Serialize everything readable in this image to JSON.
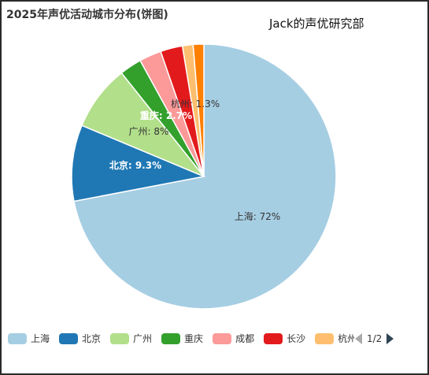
{
  "chart_data": {
    "type": "pie",
    "title": "2025年声优活动城市分布(饼图)",
    "watermark": "Jack的声优研究部",
    "slices": [
      {
        "name": "上海",
        "value": 72,
        "color": "#a6cee3",
        "label": "上海: 72%"
      },
      {
        "name": "北京",
        "value": 9.3,
        "color": "#1f78b4",
        "label": "北京: 9.3%"
      },
      {
        "name": "广州",
        "value": 8,
        "color": "#b2df8a",
        "label": "广州: 8%"
      },
      {
        "name": "重庆",
        "value": 2.7,
        "color": "#33a02c",
        "label": "重庆: 2.7%"
      },
      {
        "name": "成都",
        "value": 2.7,
        "color": "#fb9a99",
        "label": ""
      },
      {
        "name": "长沙",
        "value": 2.7,
        "color": "#e31a1c",
        "label": ""
      },
      {
        "name": "杭州",
        "value": 1.3,
        "color": "#fdbf6f",
        "label": "杭州: 1.3%"
      },
      {
        "name": "",
        "value": 1.3,
        "color": "#ff7f00",
        "label": ""
      }
    ],
    "legend": {
      "placement": "bottom",
      "items": [
        "上海",
        "北京",
        "广州",
        "重庆",
        "成都",
        "长沙",
        "杭州"
      ],
      "page": "1/2"
    }
  }
}
